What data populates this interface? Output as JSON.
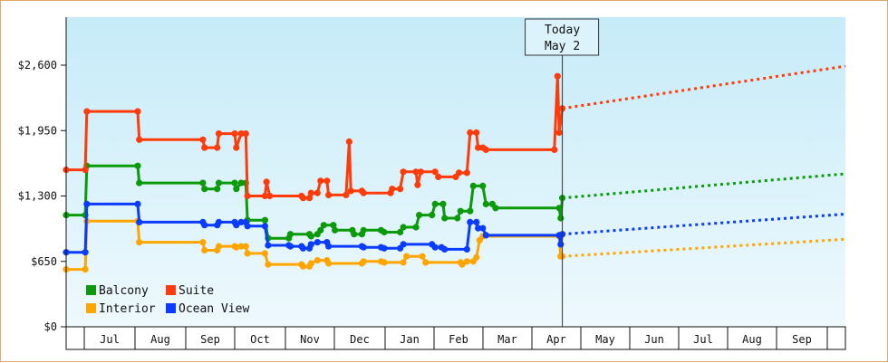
{
  "chart_data": {
    "type": "line",
    "title": "",
    "xlabel": "",
    "ylabel": "",
    "x_tick_labels": [
      "Jul",
      "Aug",
      "Sep",
      "Oct",
      "Nov",
      "Dec",
      "Jan",
      "Feb",
      "Mar",
      "Apr",
      "May",
      "Jun",
      "Jul",
      "Aug",
      "Sep"
    ],
    "y_tick_labels": [
      "$0",
      "$650",
      "$1,300",
      "$1,950",
      "$2,600"
    ],
    "ylim": [
      0,
      2600
    ],
    "ytick_values": [
      0,
      650,
      1300,
      1950,
      2600
    ],
    "today_label": [
      "Today",
      "May 2"
    ],
    "today_x_day": 312,
    "xlim_days": [
      0,
      490
    ],
    "grid": false,
    "legend_position": "bottom-left",
    "colors": {
      "Balcony": "#0a9a0a",
      "Suite": "#ff3b0a",
      "Interior": "#ffa500",
      "Ocean View": "#0a3cff",
      "background_top": "#c6ebf8",
      "background_bottom": "#eaf8fd"
    },
    "series": [
      {
        "name": "Balcony",
        "values": [
          [
            0,
            1110
          ],
          [
            12,
            1110
          ],
          [
            13,
            1600
          ],
          [
            45,
            1600
          ],
          [
            46,
            1430
          ],
          [
            86,
            1430
          ],
          [
            87,
            1370
          ],
          [
            95,
            1370
          ],
          [
            96,
            1430
          ],
          [
            106,
            1430
          ],
          [
            107,
            1370
          ],
          [
            110,
            1430
          ],
          [
            113,
            1430
          ],
          [
            114,
            1060
          ],
          [
            125,
            1060
          ],
          [
            127,
            880
          ],
          [
            140,
            880
          ],
          [
            141,
            920
          ],
          [
            153,
            920
          ],
          [
            154,
            900
          ],
          [
            158,
            920
          ],
          [
            160,
            960
          ],
          [
            162,
            1010
          ],
          [
            168,
            1010
          ],
          [
            169,
            960
          ],
          [
            180,
            960
          ],
          [
            181,
            920
          ],
          [
            186,
            920
          ],
          [
            187,
            960
          ],
          [
            198,
            960
          ],
          [
            200,
            940
          ],
          [
            210,
            940
          ],
          [
            212,
            990
          ],
          [
            220,
            990
          ],
          [
            222,
            1110
          ],
          [
            230,
            1110
          ],
          [
            232,
            1220
          ],
          [
            237,
            1220
          ],
          [
            238,
            1080
          ],
          [
            246,
            1080
          ],
          [
            248,
            1150
          ],
          [
            254,
            1150
          ],
          [
            256,
            1400
          ],
          [
            262,
            1400
          ],
          [
            264,
            1220
          ],
          [
            268,
            1220
          ],
          [
            270,
            1180
          ],
          [
            310,
            1180
          ],
          [
            311,
            1080
          ],
          [
            312,
            1280
          ]
        ],
        "dotted": [
          [
            312,
            1280
          ],
          [
            490,
            1520
          ]
        ]
      },
      {
        "name": "Suite",
        "values": [
          [
            0,
            1560
          ],
          [
            12,
            1560
          ],
          [
            13,
            2140
          ],
          [
            45,
            2140
          ],
          [
            46,
            1860
          ],
          [
            86,
            1860
          ],
          [
            87,
            1780
          ],
          [
            95,
            1780
          ],
          [
            96,
            1920
          ],
          [
            106,
            1920
          ],
          [
            107,
            1780
          ],
          [
            110,
            1920
          ],
          [
            113,
            1920
          ],
          [
            114,
            1300
          ],
          [
            125,
            1300
          ],
          [
            126,
            1440
          ],
          [
            128,
            1300
          ],
          [
            148,
            1300
          ],
          [
            149,
            1280
          ],
          [
            153,
            1280
          ],
          [
            154,
            1330
          ],
          [
            158,
            1330
          ],
          [
            160,
            1450
          ],
          [
            164,
            1450
          ],
          [
            165,
            1310
          ],
          [
            176,
            1310
          ],
          [
            178,
            1840
          ],
          [
            179,
            1350
          ],
          [
            186,
            1350
          ],
          [
            187,
            1330
          ],
          [
            204,
            1330
          ],
          [
            205,
            1370
          ],
          [
            210,
            1370
          ],
          [
            212,
            1540
          ],
          [
            220,
            1540
          ],
          [
            221,
            1410
          ],
          [
            223,
            1540
          ],
          [
            232,
            1540
          ],
          [
            234,
            1490
          ],
          [
            245,
            1490
          ],
          [
            247,
            1530
          ],
          [
            252,
            1530
          ],
          [
            254,
            1930
          ],
          [
            258,
            1930
          ],
          [
            259,
            1780
          ],
          [
            262,
            1780
          ],
          [
            264,
            1760
          ],
          [
            307,
            1760
          ],
          [
            309,
            2490
          ],
          [
            310,
            1930
          ],
          [
            312,
            2170
          ]
        ],
        "dotted": [
          [
            312,
            2170
          ],
          [
            490,
            2590
          ]
        ]
      },
      {
        "name": "Interior",
        "values": [
          [
            0,
            570
          ],
          [
            12,
            570
          ],
          [
            13,
            1050
          ],
          [
            45,
            1050
          ],
          [
            46,
            840
          ],
          [
            86,
            840
          ],
          [
            87,
            760
          ],
          [
            95,
            760
          ],
          [
            96,
            800
          ],
          [
            106,
            800
          ],
          [
            107,
            790
          ],
          [
            110,
            800
          ],
          [
            113,
            800
          ],
          [
            114,
            730
          ],
          [
            125,
            730
          ],
          [
            127,
            620
          ],
          [
            148,
            620
          ],
          [
            149,
            600
          ],
          [
            153,
            600
          ],
          [
            154,
            630
          ],
          [
            158,
            660
          ],
          [
            164,
            660
          ],
          [
            165,
            630
          ],
          [
            186,
            630
          ],
          [
            187,
            650
          ],
          [
            198,
            650
          ],
          [
            200,
            640
          ],
          [
            212,
            640
          ],
          [
            214,
            700
          ],
          [
            224,
            700
          ],
          [
            226,
            640
          ],
          [
            248,
            640
          ],
          [
            249,
            620
          ],
          [
            252,
            650
          ],
          [
            256,
            650
          ],
          [
            258,
            690
          ],
          [
            260,
            860
          ],
          [
            262,
            900
          ],
          [
            310,
            900
          ],
          [
            311,
            700
          ],
          [
            312,
            700
          ]
        ],
        "dotted": [
          [
            312,
            700
          ],
          [
            490,
            870
          ]
        ]
      },
      {
        "name": "Ocean View",
        "values": [
          [
            0,
            740
          ],
          [
            12,
            740
          ],
          [
            13,
            1220
          ],
          [
            45,
            1220
          ],
          [
            46,
            1040
          ],
          [
            86,
            1040
          ],
          [
            87,
            1010
          ],
          [
            95,
            1010
          ],
          [
            96,
            1040
          ],
          [
            106,
            1040
          ],
          [
            107,
            1010
          ],
          [
            110,
            1040
          ],
          [
            113,
            1040
          ],
          [
            114,
            1000
          ],
          [
            125,
            1000
          ],
          [
            127,
            810
          ],
          [
            140,
            810
          ],
          [
            141,
            800
          ],
          [
            148,
            800
          ],
          [
            149,
            780
          ],
          [
            153,
            780
          ],
          [
            154,
            820
          ],
          [
            158,
            840
          ],
          [
            164,
            840
          ],
          [
            165,
            800
          ],
          [
            186,
            800
          ],
          [
            187,
            790
          ],
          [
            198,
            790
          ],
          [
            200,
            780
          ],
          [
            210,
            780
          ],
          [
            212,
            820
          ],
          [
            230,
            820
          ],
          [
            232,
            790
          ],
          [
            236,
            790
          ],
          [
            238,
            770
          ],
          [
            252,
            770
          ],
          [
            254,
            1040
          ],
          [
            258,
            1040
          ],
          [
            259,
            980
          ],
          [
            262,
            980
          ],
          [
            264,
            910
          ],
          [
            310,
            910
          ],
          [
            311,
            820
          ],
          [
            312,
            920
          ]
        ],
        "dotted": [
          [
            312,
            920
          ],
          [
            490,
            1120
          ]
        ]
      }
    ]
  }
}
